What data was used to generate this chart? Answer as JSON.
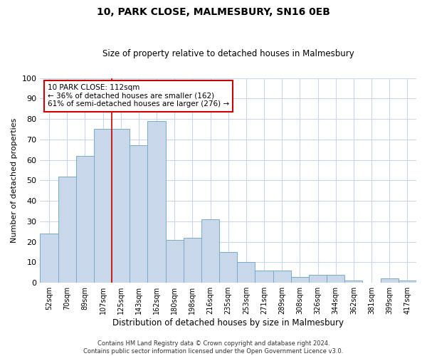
{
  "title": "10, PARK CLOSE, MALMESBURY, SN16 0EB",
  "subtitle": "Size of property relative to detached houses in Malmesbury",
  "xlabel": "Distribution of detached houses by size in Malmesbury",
  "ylabel": "Number of detached properties",
  "categories": [
    "52sqm",
    "70sqm",
    "89sqm",
    "107sqm",
    "125sqm",
    "143sqm",
    "162sqm",
    "180sqm",
    "198sqm",
    "216sqm",
    "235sqm",
    "253sqm",
    "271sqm",
    "289sqm",
    "308sqm",
    "326sqm",
    "344sqm",
    "362sqm",
    "381sqm",
    "399sqm",
    "417sqm"
  ],
  "values": [
    24,
    52,
    62,
    75,
    75,
    67,
    79,
    21,
    22,
    31,
    15,
    10,
    6,
    6,
    3,
    4,
    4,
    1,
    0,
    2,
    1
  ],
  "bar_color": "#c8d8ea",
  "bar_edge_color": "#7aaac8",
  "grid_color": "#c8d8ea",
  "vline_x": 3.5,
  "vline_color": "#cc0000",
  "annotation_text": "10 PARK CLOSE: 112sqm\n← 36% of detached houses are smaller (162)\n61% of semi-detached houses are larger (276) →",
  "annotation_box_color": "#ffffff",
  "annotation_box_edge": "#cc0000",
  "ylim": [
    0,
    100
  ],
  "yticks": [
    0,
    10,
    20,
    30,
    40,
    50,
    60,
    70,
    80,
    90,
    100
  ],
  "footer": "Contains HM Land Registry data © Crown copyright and database right 2024.\nContains public sector information licensed under the Open Government Licence v3.0.",
  "bg_color": "#ffffff",
  "plot_bg_color": "#ffffff"
}
